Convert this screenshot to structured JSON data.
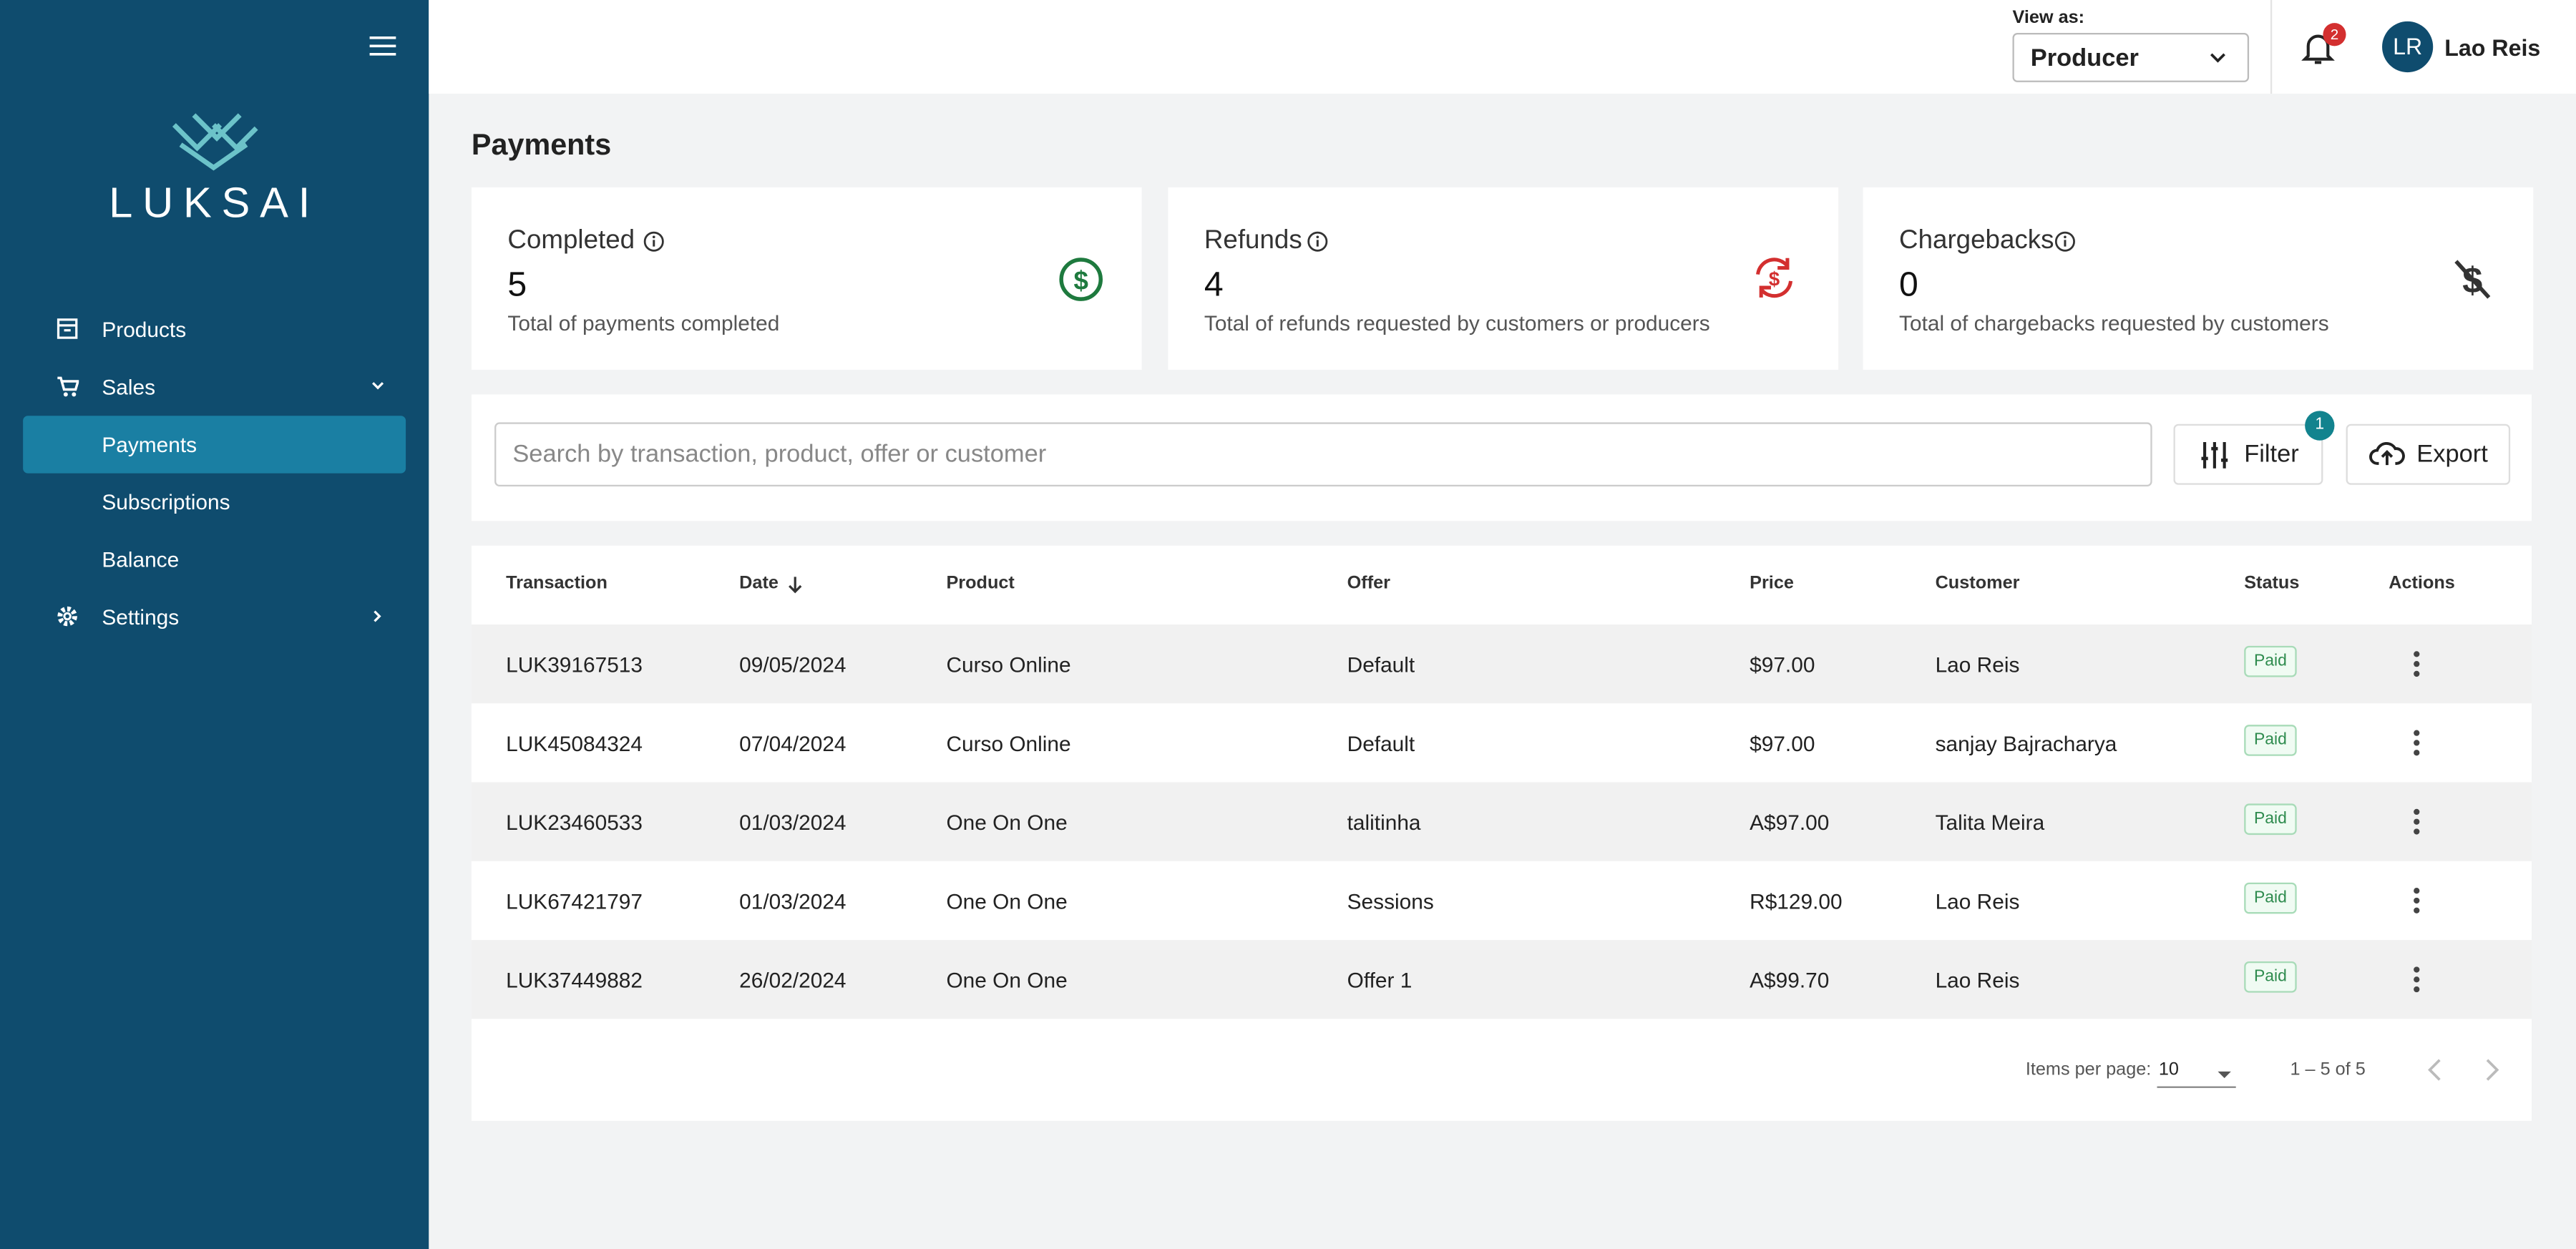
{
  "sidebar": {
    "brand": "LUKSAI",
    "nav": [
      {
        "label": "Products"
      },
      {
        "label": "Sales"
      },
      {
        "label": "Payments"
      },
      {
        "label": "Subscriptions"
      },
      {
        "label": "Balance"
      },
      {
        "label": "Settings"
      }
    ]
  },
  "header": {
    "view_as_label": "View as:",
    "view_as_value": "Producer",
    "notification_count": "2",
    "avatar_initials": "LR",
    "user_name": "Lao Reis"
  },
  "page_title": "Payments",
  "cards": [
    {
      "title": "Completed",
      "value": "5",
      "description": "Total of payments completed"
    },
    {
      "title": "Refunds",
      "value": "4",
      "description": "Total of refunds requested by customers or producers"
    },
    {
      "title": "Chargebacks",
      "value": "0",
      "description": "Total of chargebacks requested by customers"
    }
  ],
  "search_placeholder": "Search by transaction, product, offer or customer",
  "filter": {
    "label": "Filter",
    "badge": "1"
  },
  "export_label": "Export",
  "table": {
    "columns": [
      "Transaction",
      "Date",
      "Product",
      "Offer",
      "Price",
      "Customer",
      "Status",
      "Actions"
    ],
    "rows": [
      [
        "LUK39167513",
        "09/05/2024",
        "Curso Online",
        "Default",
        "$97.00",
        "Lao Reis",
        "Paid"
      ],
      [
        "LUK45084324",
        "07/04/2024",
        "Curso Online",
        "Default",
        "$97.00",
        "sanjay Bajracharya",
        "Paid"
      ],
      [
        "LUK23460533",
        "01/03/2024",
        "One On One",
        "talitinha",
        "A$97.00",
        "Talita Meira",
        "Paid"
      ],
      [
        "LUK67421797",
        "01/03/2024",
        "One On One",
        "Sessions",
        "R$129.00",
        "Lao Reis",
        "Paid"
      ],
      [
        "LUK37449882",
        "26/02/2024",
        "One On One",
        "Offer 1",
        "A$99.70",
        "Lao Reis",
        "Paid"
      ]
    ]
  },
  "pagination": {
    "items_per_page_label": "Items per page:",
    "items_per_page": "10",
    "range": "1 – 5 of 5"
  }
}
